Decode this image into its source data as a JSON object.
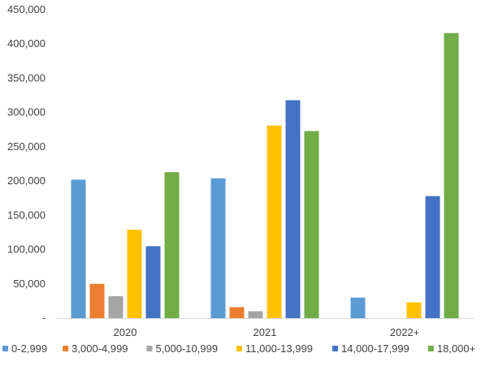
{
  "chart_data": {
    "type": "bar",
    "categories": [
      "2020",
      "2021",
      "2022+"
    ],
    "series": [
      {
        "name": "0-2,999",
        "color": "#5B9BD5",
        "values": [
          202000,
          204000,
          30000
        ]
      },
      {
        "name": "3,000-4,999",
        "color": "#ED7D31",
        "values": [
          50000,
          16000,
          0
        ]
      },
      {
        "name": "5,000-10,999",
        "color": "#A5A5A5",
        "values": [
          32000,
          10000,
          0
        ]
      },
      {
        "name": "11,000-13,999",
        "color": "#FFC000",
        "values": [
          129000,
          281000,
          23000
        ]
      },
      {
        "name": "14,000-17,999",
        "color": "#4472C4",
        "values": [
          105000,
          318000,
          178000
        ]
      },
      {
        "name": "18,000+",
        "color": "#70AD47",
        "values": [
          213000,
          273000,
          416000
        ]
      }
    ],
    "ylim": [
      0,
      450000
    ],
    "yticks": [
      0,
      50000,
      100000,
      150000,
      200000,
      250000,
      300000,
      350000,
      400000,
      450000
    ],
    "ytick_labels": [
      "-",
      "50,000",
      "100,000",
      "150,000",
      "200,000",
      "250,000",
      "300,000",
      "350,000",
      "400,000",
      "450,000"
    ],
    "legend_position": "bottom",
    "grid": false
  }
}
